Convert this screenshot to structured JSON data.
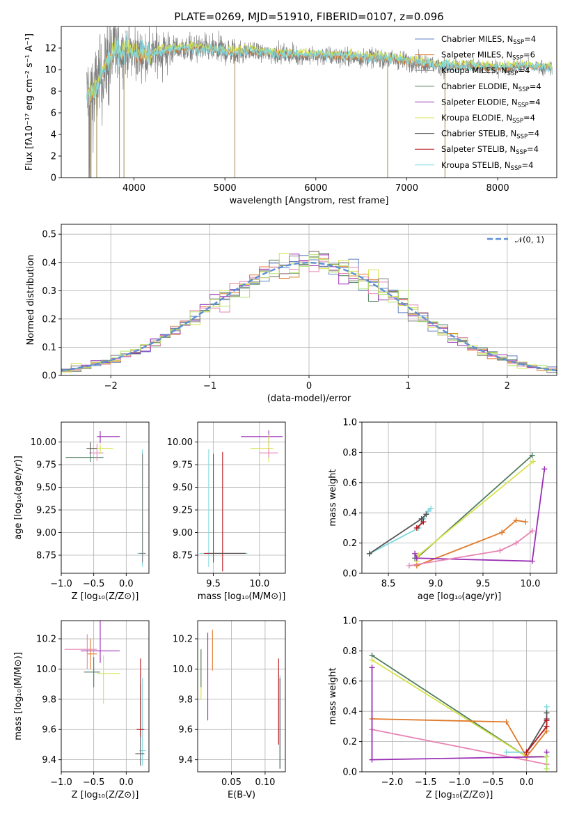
{
  "figure": {
    "title": "PLATE=0269, MJD=51910, FIBERID=0107, z=0.096"
  },
  "colors": {
    "chabrier_miles": "#5c7fc5",
    "salpeter_miles": "#e07a2a",
    "kroupa_miles": "#808080",
    "chabrier_elodie": "#4f7d5f",
    "salpeter_elodie": "#9a2fb5",
    "kroupa_elodie": "#d6e24a",
    "chabrier_stelib": "#555555",
    "salpeter_stelib": "#b5161b",
    "kroupa_stelib": "#7fd7df",
    "pink": "#e685b5",
    "lime": "#b6e36a",
    "normal_curve": "#5b8fd4"
  },
  "chart_data": [
    {
      "id": "spectrum",
      "type": "line",
      "xlabel": "wavelength [Angstrom, rest frame]",
      "ylabel": "Flux [fλ10⁻¹⁷ erg cm⁻² s⁻¹ A⁻¹]",
      "xlim": [
        3200,
        8650
      ],
      "ylim": [
        0,
        14
      ],
      "xticks": [
        4000,
        5000,
        6000,
        7000,
        8000
      ],
      "yticks": [
        0,
        2,
        4,
        6,
        8,
        10,
        12
      ],
      "grid": false,
      "legend_position": "upper-right",
      "legend": [
        {
          "label": "Chabrier MILES, N",
          "sub": "SSP",
          "suffix": "=4",
          "color": "#5c7fc5"
        },
        {
          "label": "Salpeter MILES, N",
          "sub": "SSP",
          "suffix": "=6",
          "color": "#e07a2a"
        },
        {
          "label": "Kroupa MILES, N",
          "sub": "SSP",
          "suffix": "=4",
          "color": "#808080"
        },
        {
          "label": "Chabrier ELODIE, N",
          "sub": "SSP",
          "suffix": "=4",
          "color": "#4f7d5f"
        },
        {
          "label": "Salpeter ELODIE, N",
          "sub": "SSP",
          "suffix": "=4",
          "color": "#9a2fb5"
        },
        {
          "label": "Kroupa ELODIE, N",
          "sub": "SSP",
          "suffix": "=4",
          "color": "#d6e24a"
        },
        {
          "label": "Chabrier STELIB, N",
          "sub": "SSP",
          "suffix": "=4",
          "color": "#555555"
        },
        {
          "label": "Salpeter STELIB, N",
          "sub": "SSP",
          "suffix": "=4",
          "color": "#b5161b"
        },
        {
          "label": "Kroupa STELIB, N",
          "sub": "SSP",
          "suffix": "=4",
          "color": "#7fd7df"
        }
      ],
      "data_envelope": {
        "x": [
          3480,
          3550,
          3600,
          3700,
          3800,
          3900,
          4000,
          4100,
          4200,
          4300,
          4500,
          4700,
          4900,
          5100,
          5300,
          5500,
          5700,
          5900,
          6100,
          6300,
          6500,
          6700,
          6900,
          7100,
          7300,
          7500,
          7700,
          7900,
          8100,
          8300,
          8500,
          8600
        ],
        "y": [
          7.6,
          7.9,
          8.6,
          10.5,
          11.6,
          11.8,
          11.6,
          11.2,
          11.4,
          11.7,
          11.9,
          12.0,
          11.8,
          11.6,
          11.7,
          11.5,
          11.4,
          11.3,
          11.3,
          11.2,
          11.1,
          11.1,
          10.9,
          10.7,
          10.4,
          10.3,
          10.3,
          10.2,
          10.2,
          10.3,
          10.2,
          10.1
        ]
      },
      "dropouts": [
        3520,
        3590,
        3840,
        3890,
        5110,
        6790,
        7420
      ]
    },
    {
      "id": "residuals",
      "type": "histogram",
      "xlabel": "(data-model)/error",
      "ylabel": "Normed distribution",
      "xlim": [
        -2.5,
        2.5
      ],
      "ylim": [
        0,
        0.535
      ],
      "xticks": [
        -2,
        -1,
        0,
        1,
        2
      ],
      "yticks": [
        0.0,
        0.1,
        0.2,
        0.3,
        0.4,
        0.5
      ],
      "grid": true,
      "legend_position": "upper-right",
      "legend": [
        {
          "label": "𝒩(0, 1)",
          "color": "#5b8fd4",
          "dashed": true
        }
      ],
      "bin_width": 0.1,
      "bin_start": -2.5,
      "base_density": "normal(0,1)",
      "series_colors": [
        "#5c7fc5",
        "#e07a2a",
        "#4f7d5f",
        "#9a2fb5",
        "#d6e24a",
        "#e685b5",
        "#808080",
        "#b6e36a"
      ]
    },
    {
      "id": "age_vs_Z",
      "type": "errorbar",
      "xlabel": "Z [log₁₀(Z/Z⊙)]",
      "ylabel": "age  [log₁₀(age/yr)]",
      "xlim": [
        -1.0,
        0.35
      ],
      "ylim": [
        8.55,
        10.22
      ],
      "xticks": [
        -1.0,
        -0.5,
        0.0
      ],
      "yticks": [
        8.75,
        9.0,
        9.25,
        9.5,
        9.75,
        10.0
      ],
      "grid": true,
      "points": [
        {
          "x": -0.55,
          "y": 9.83,
          "xerr": [
            0.38,
            0.2
          ],
          "yerr": [
            0.05,
            0.06
          ],
          "color": "#4f7d5f"
        },
        {
          "x": -0.45,
          "y": 9.88,
          "xerr": [
            0.12,
            0.1
          ],
          "yerr": [
            0.09,
            0.1
          ],
          "color": "#e685b5"
        },
        {
          "x": -0.4,
          "y": 10.06,
          "xerr": [
            0.05,
            0.3
          ],
          "yerr": [
            0.07,
            0.06
          ],
          "color": "#9a2fb5"
        },
        {
          "x": -0.4,
          "y": 9.93,
          "xerr": [
            0.15,
            0.2
          ],
          "yerr": [
            0.06,
            0.05
          ],
          "color": "#d6e24a"
        },
        {
          "x": -0.55,
          "y": 9.93,
          "xerr": [
            0.06,
            0.1
          ],
          "yerr": [
            0.06,
            0.07
          ],
          "color": "#555555"
        },
        {
          "x": 0.25,
          "y": 8.77,
          "xerr": [
            0.08,
            0.05
          ],
          "yerr": [
            0.15,
            1.15
          ],
          "color": "#7fd7df"
        },
        {
          "x": 0.25,
          "y": 8.77,
          "xerr": [
            0.05,
            0.05
          ],
          "yerr": [
            0.1,
            1.1
          ],
          "color": "#808080"
        }
      ]
    },
    {
      "id": "age_vs_mass",
      "type": "errorbar",
      "xlabel": "mass [log₁₀(M/M⊙)]",
      "ylabel": "",
      "xlim": [
        9.33,
        10.28
      ],
      "ylim": [
        8.55,
        10.22
      ],
      "xticks": [
        9.5,
        10.0
      ],
      "yticks": [
        8.75,
        9.0,
        9.25,
        9.5,
        9.75,
        10.0
      ],
      "grid": true,
      "points": [
        {
          "x": 10.1,
          "y": 10.06,
          "xerr": [
            0.3,
            0.15
          ],
          "yerr": [
            0.1,
            0.07
          ],
          "color": "#9a2fb5"
        },
        {
          "x": 10.1,
          "y": 9.93,
          "xerr": [
            0.2,
            0.05
          ],
          "yerr": [
            0.15,
            0.15
          ],
          "color": "#d6e24a"
        },
        {
          "x": 10.1,
          "y": 9.88,
          "xerr": [
            0.1,
            0.1
          ],
          "yerr": [
            0.05,
            0.05
          ],
          "color": "#e685b5"
        },
        {
          "x": 9.45,
          "y": 8.77,
          "xerr": [
            0.1,
            0.42
          ],
          "yerr": [
            0.15,
            1.15
          ],
          "color": "#7fd7df"
        },
        {
          "x": 9.6,
          "y": 8.77,
          "xerr": [
            0.2,
            0.25
          ],
          "yerr": [
            0.2,
            1.12
          ],
          "color": "#b5161b"
        },
        {
          "x": 9.5,
          "y": 8.77,
          "xerr": [
            0.05,
            0.35
          ],
          "yerr": [
            0.1,
            1.1
          ],
          "color": "#555555"
        }
      ]
    },
    {
      "id": "weight_vs_age",
      "type": "line",
      "xlabel": "age  [log₁₀(age/yr)]",
      "ylabel": "mass weight",
      "xlim": [
        8.22,
        10.28
      ],
      "ylim": [
        0,
        1
      ],
      "xticks": [
        8.5,
        9.0,
        9.5,
        10.0
      ],
      "yticks": [
        0.0,
        0.2,
        0.4,
        0.6,
        0.8,
        1.0
      ],
      "grid": true,
      "series": [
        {
          "color": "#7fd7df",
          "x": [
            8.3,
            8.82,
            8.87,
            8.92,
            8.95
          ],
          "y": [
            0.13,
            0.3,
            0.36,
            0.41,
            0.43
          ]
        },
        {
          "color": "#555555",
          "x": [
            8.3,
            8.85,
            8.9
          ],
          "y": [
            0.13,
            0.36,
            0.39
          ]
        },
        {
          "color": "#b5161b",
          "x": [
            8.8,
            8.87
          ],
          "y": [
            0.3,
            0.34
          ]
        },
        {
          "color": "#4f7d5f",
          "x": [
            8.78,
            8.8,
            10.02
          ],
          "y": [
            0.1,
            0.1,
            0.78
          ]
        },
        {
          "color": "#d6e24a",
          "x": [
            8.8,
            8.82,
            10.03
          ],
          "y": [
            0.08,
            0.12,
            0.74
          ]
        },
        {
          "color": "#e07a2a",
          "x": [
            8.8,
            9.7,
            9.85,
            9.95
          ],
          "y": [
            0.05,
            0.27,
            0.35,
            0.34
          ]
        },
        {
          "color": "#9a2fb5",
          "x": [
            8.78,
            8.8,
            10.02,
            10.15
          ],
          "y": [
            0.13,
            0.1,
            0.08,
            0.69
          ]
        },
        {
          "color": "#e685b5",
          "x": [
            8.72,
            9.68,
            9.85,
            10.02
          ],
          "y": [
            0.05,
            0.15,
            0.2,
            0.28
          ]
        }
      ]
    },
    {
      "id": "mass_vs_Z",
      "type": "errorbar",
      "xlabel": "Z [log₁₀(Z/Z⊙)]",
      "ylabel": "mass [log₁₀(M/M⊙)]",
      "xlim": [
        -1.0,
        0.35
      ],
      "ylim": [
        9.32,
        10.32
      ],
      "xticks": [
        -1.0,
        -0.5,
        0.0
      ],
      "yticks": [
        9.4,
        9.6,
        9.8,
        10.0,
        10.2
      ],
      "grid": true,
      "points": [
        {
          "x": -0.6,
          "y": 10.13,
          "xerr": [
            0.35,
            0.15
          ],
          "yerr": [
            0.13,
            0.1
          ],
          "color": "#e685b5"
        },
        {
          "x": -0.4,
          "y": 10.12,
          "xerr": [
            0.3,
            0.3
          ],
          "yerr": [
            0.08,
            0.46
          ],
          "color": "#9a2fb5"
        },
        {
          "x": -0.5,
          "y": 9.98,
          "xerr": [
            0.15,
            0.1
          ],
          "yerr": [
            0.1,
            0.1
          ],
          "color": "#4f7d5f"
        },
        {
          "x": -0.35,
          "y": 9.97,
          "xerr": [
            0.1,
            0.25
          ],
          "yerr": [
            0.2,
            0.12
          ],
          "color": "#d6e24a"
        },
        {
          "x": -0.55,
          "y": 10.1,
          "xerr": [
            0.05,
            0.1
          ],
          "yerr": [
            0.1,
            0.1
          ],
          "color": "#e07a2a"
        },
        {
          "x": 0.25,
          "y": 9.46,
          "xerr": [
            0.05,
            0.05
          ],
          "yerr": [
            0.1,
            0.48
          ],
          "color": "#7fd7df"
        },
        {
          "x": 0.22,
          "y": 9.44,
          "xerr": [
            0.08,
            0.06
          ],
          "yerr": [
            0.08,
            0.46
          ],
          "color": "#555555"
        },
        {
          "x": 0.22,
          "y": 9.6,
          "xerr": [
            0.06,
            0.06
          ],
          "yerr": [
            0.05,
            0.47
          ],
          "color": "#b5161b"
        }
      ]
    },
    {
      "id": "mass_vs_ebv",
      "type": "errorbar",
      "xlabel": "E(B-V)",
      "ylabel": "",
      "xlim": [
        0.0,
        0.13
      ],
      "ylim": [
        9.32,
        10.32
      ],
      "xticks": [
        0.05,
        0.1
      ],
      "yticks": [
        9.4,
        9.6,
        9.8,
        10.0,
        10.2
      ],
      "grid": true,
      "points": [
        {
          "x": 0.005,
          "y": 9.96,
          "yerr": [
            0.16,
            0.17
          ],
          "color": "#d6e24a"
        },
        {
          "x": 0.005,
          "y": 9.98,
          "yerr": [
            0.1,
            0.15
          ],
          "color": "#4f7d5f"
        },
        {
          "x": 0.015,
          "y": 9.96,
          "yerr": [
            0.3,
            0.28
          ],
          "color": "#9a2fb5"
        },
        {
          "x": 0.022,
          "y": 10.12,
          "yerr": [
            0.13,
            0.14
          ],
          "color": "#e07a2a"
        },
        {
          "x": 0.12,
          "y": 9.6,
          "yerr": [
            0.1,
            0.47
          ],
          "color": "#b5161b"
        },
        {
          "x": 0.122,
          "y": 9.46,
          "yerr": [
            0.12,
            0.5
          ],
          "color": "#7fd7df"
        },
        {
          "x": 0.122,
          "y": 9.44,
          "yerr": [
            0.1,
            0.5
          ],
          "color": "#555555"
        }
      ]
    },
    {
      "id": "weight_vs_Z",
      "type": "line",
      "xlabel": "Z [log₁₀(Z/Z⊙)]",
      "ylabel": "mass weight",
      "xlim": [
        -2.45,
        0.45
      ],
      "ylim": [
        0,
        1
      ],
      "xticks": [
        -2.0,
        -1.5,
        -1.0,
        -0.5,
        0.0
      ],
      "yticks": [
        0.0,
        0.2,
        0.4,
        0.6,
        0.8,
        1.0
      ],
      "grid": true,
      "series": [
        {
          "color": "#4f7d5f",
          "x": [
            -2.3,
            0.0,
            0.3
          ],
          "y": [
            0.77,
            0.1,
            0.1
          ]
        },
        {
          "color": "#d6e24a",
          "x": [
            -2.3,
            0.0,
            0.3
          ],
          "y": [
            0.74,
            0.1,
            0.1
          ]
        },
        {
          "color": "#e07a2a",
          "x": [
            -2.3,
            -0.3,
            0.0,
            0.3
          ],
          "y": [
            0.35,
            0.33,
            0.1,
            0.27
          ]
        },
        {
          "color": "#e685b5",
          "x": [
            -2.3,
            0.3
          ],
          "y": [
            0.28,
            0.05
          ]
        },
        {
          "color": "#9a2fb5",
          "x": [
            -2.3,
            -2.3,
            0.3,
            0.3
          ],
          "y": [
            0.69,
            0.08,
            0.1,
            0.13
          ]
        },
        {
          "color": "#7fd7df",
          "x": [
            -0.3,
            0.0,
            0.3,
            0.3
          ],
          "y": [
            0.13,
            0.13,
            0.3,
            0.43
          ]
        },
        {
          "color": "#555555",
          "x": [
            0.0,
            0.3,
            0.3
          ],
          "y": [
            0.13,
            0.35,
            0.39
          ]
        },
        {
          "color": "#b5161b",
          "x": [
            0.0,
            0.3,
            0.3
          ],
          "y": [
            0.13,
            0.3,
            0.34
          ]
        },
        {
          "color": "#b6e36a",
          "x": [
            0.3,
            0.3
          ],
          "y": [
            0.02,
            0.1
          ]
        }
      ]
    }
  ]
}
